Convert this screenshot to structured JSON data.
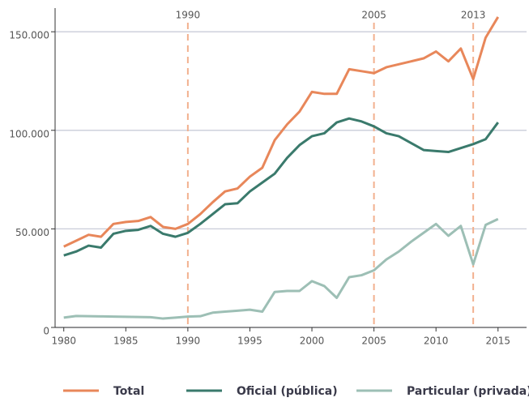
{
  "chart_data": {
    "type": "line",
    "x": [
      1980,
      1981,
      1982,
      1983,
      1984,
      1985,
      1986,
      1987,
      1988,
      1989,
      1990,
      1991,
      1992,
      1993,
      1994,
      1995,
      1996,
      1997,
      1998,
      1999,
      2000,
      2001,
      2002,
      2003,
      2004,
      2005,
      2006,
      2007,
      2008,
      2009,
      2010,
      2011,
      2012,
      2013,
      2014,
      2015
    ],
    "series": [
      {
        "name": "Total",
        "color": "#e8875a",
        "values": [
          41000,
          44000,
          47000,
          46000,
          52500,
          53500,
          54000,
          56000,
          51000,
          50000,
          52500,
          57500,
          63500,
          69000,
          70500,
          76500,
          81000,
          95000,
          103000,
          109500,
          119500,
          118500,
          118500,
          131000,
          130000,
          129000,
          132000,
          133500,
          135000,
          136500,
          140000,
          135000,
          141500,
          126000,
          147000,
          157500
        ]
      },
      {
        "name": "Oficial (pública)",
        "color": "#3a7a6c",
        "values": [
          36500,
          38500,
          41500,
          40500,
          47500,
          49000,
          49500,
          51500,
          47500,
          46000,
          48000,
          52500,
          57500,
          62500,
          63000,
          69000,
          73500,
          78000,
          86000,
          92500,
          97000,
          98500,
          104000,
          106000,
          104500,
          102000,
          98500,
          97000,
          93500,
          90000,
          89500,
          89000,
          91000,
          93000,
          95500,
          104000
        ]
      },
      {
        "name": "Particular (privada)",
        "color": "#9dbfb5",
        "values": [
          5000,
          5800,
          5700,
          5600,
          5500,
          5400,
          5300,
          5200,
          4500,
          5000,
          5500,
          5700,
          7500,
          8000,
          8500,
          9000,
          8000,
          18000,
          18500,
          18500,
          23500,
          21000,
          15000,
          25500,
          26500,
          29000,
          34500,
          38500,
          43500,
          48000,
          52500,
          46500,
          51500,
          32000,
          52000,
          55000
        ]
      }
    ],
    "xlim": [
      1979.3,
      2017.3
    ],
    "ylim": [
      0,
      162000
    ],
    "xticks": [
      1980,
      1985,
      1990,
      1995,
      2000,
      2005,
      2010,
      2015
    ],
    "yticks": [
      0,
      {
        "value": 50000,
        "label": "50.000"
      },
      {
        "value": 100000,
        "label": "100.000"
      },
      {
        "value": 150000,
        "label": "150.000"
      }
    ],
    "vlines": [
      1990,
      2005,
      2013
    ],
    "grid": true
  }
}
